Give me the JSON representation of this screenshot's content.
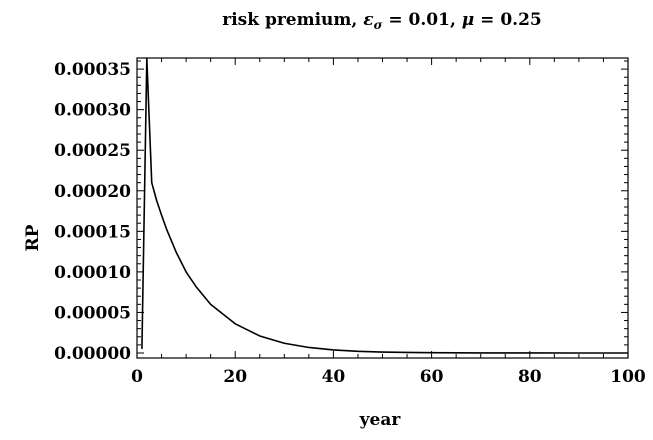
{
  "chart_data": {
    "type": "line",
    "title": "risk premium, εσ = 0.01, μ = 0.25",
    "title_parts": {
      "prefix": "risk premium, ",
      "eps_symbol": "ε",
      "eps_subscript": "σ",
      "eps_value": " = 0.01, ",
      "mu_symbol": "μ",
      "mu_value": " = 0.25"
    },
    "xlabel": "year",
    "ylabel": "RP",
    "xlim": [
      0,
      100
    ],
    "ylim": [
      0,
      0.00036
    ],
    "x_ticks": [
      0,
      20,
      40,
      60,
      80,
      100
    ],
    "x_tick_labels": [
      "0",
      "20",
      "40",
      "60",
      "80",
      "100"
    ],
    "y_ticks": [
      0,
      5e-05,
      0.0001,
      0.00015,
      0.0002,
      0.00025,
      0.0003,
      0.00035
    ],
    "y_tick_labels": [
      "0.00000",
      "0.00005",
      "0.00010",
      "0.00015",
      "0.00020",
      "0.00025",
      "0.00030",
      "0.00035"
    ],
    "grid": false,
    "series": [
      {
        "color": "#000000",
        "x": [
          1,
          2,
          3,
          4,
          5,
          6,
          8,
          10,
          12,
          15,
          20,
          25,
          30,
          35,
          40,
          45,
          50,
          55,
          60,
          70,
          80,
          90,
          100
        ],
        "y": [
          5e-06,
          0.000363,
          0.00021,
          0.000188,
          0.00017,
          0.000153,
          0.000124,
          0.0001,
          8.2e-05,
          6e-05,
          3.6e-05,
          2.1e-05,
          1.2e-05,
          6.8e-06,
          3.8e-06,
          2.1e-06,
          1.2e-06,
          7e-07,
          4e-07,
          1e-07,
          3e-08,
          1e-08,
          0
        ]
      }
    ]
  }
}
